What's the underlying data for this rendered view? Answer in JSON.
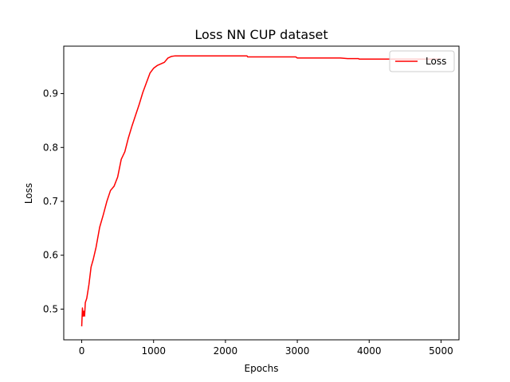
{
  "chart_data": {
    "type": "line",
    "title": "Loss NN CUP dataset",
    "xlabel": "Epochs",
    "ylabel": "Loss",
    "xlim": [
      -250,
      5250
    ],
    "ylim": [
      0.443,
      0.988
    ],
    "xticks": [
      0,
      1000,
      2000,
      3000,
      4000,
      5000
    ],
    "xtick_labels": [
      "0",
      "1000",
      "2000",
      "3000",
      "4000",
      "5000"
    ],
    "yticks": [
      0.5,
      0.6,
      0.7,
      0.8,
      0.9
    ],
    "ytick_labels": [
      "0.5",
      "0.6",
      "0.7",
      "0.8",
      "0.9"
    ],
    "grid": false,
    "legend": {
      "position": "top-right",
      "entries": [
        "Loss"
      ]
    },
    "series": [
      {
        "name": "Loss",
        "color": "#ff0000",
        "x": [
          0,
          10,
          20,
          30,
          40,
          50,
          70,
          100,
          130,
          160,
          200,
          250,
          300,
          350,
          400,
          450,
          500,
          550,
          600,
          650,
          700,
          750,
          800,
          850,
          900,
          950,
          1000,
          1050,
          1100,
          1150,
          1200,
          1250,
          1300,
          1500,
          2000,
          2300,
          2310,
          2500,
          2980,
          3000,
          3500,
          3600,
          3700,
          3850,
          3860,
          4000,
          4500,
          5000
        ],
        "y": [
          0.468,
          0.502,
          0.487,
          0.496,
          0.487,
          0.512,
          0.52,
          0.545,
          0.578,
          0.592,
          0.615,
          0.652,
          0.675,
          0.7,
          0.72,
          0.728,
          0.745,
          0.778,
          0.792,
          0.818,
          0.84,
          0.86,
          0.88,
          0.902,
          0.92,
          0.938,
          0.947,
          0.952,
          0.955,
          0.958,
          0.966,
          0.969,
          0.97,
          0.97,
          0.97,
          0.97,
          0.968,
          0.968,
          0.968,
          0.966,
          0.966,
          0.966,
          0.965,
          0.965,
          0.964,
          0.964,
          0.964,
          0.964
        ]
      }
    ]
  }
}
